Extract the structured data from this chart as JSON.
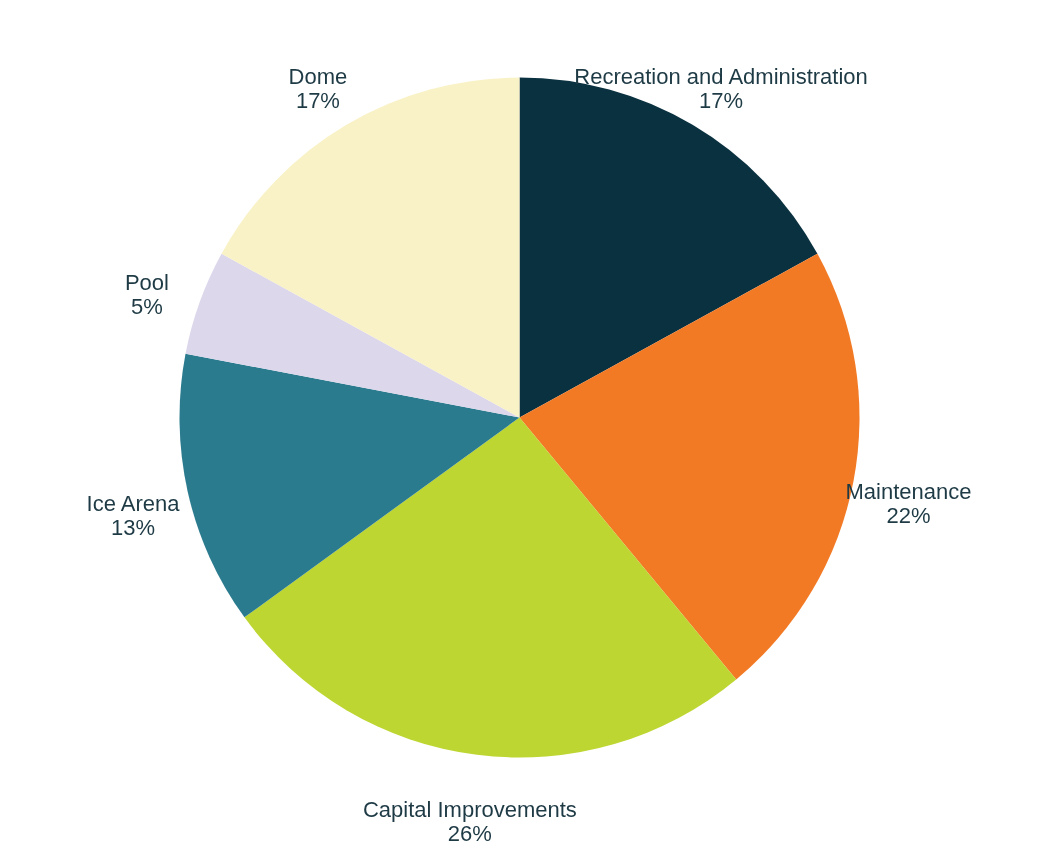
{
  "chart_data": {
    "type": "pie",
    "categories": [
      "Recreation and Administration",
      "Maintenance",
      "Capital Improvements",
      "Ice Arena",
      "Pool",
      "Dome"
    ],
    "values": [
      17,
      22,
      26,
      13,
      5,
      17
    ],
    "value_labels": [
      "17%",
      "22%",
      "26%",
      "13%",
      "5%",
      "17%"
    ],
    "colors": [
      "#0a3140",
      "#f37a25",
      "#bed632",
      "#2b7b8f",
      "#dcd7eb",
      "#f9f2c7"
    ]
  }
}
